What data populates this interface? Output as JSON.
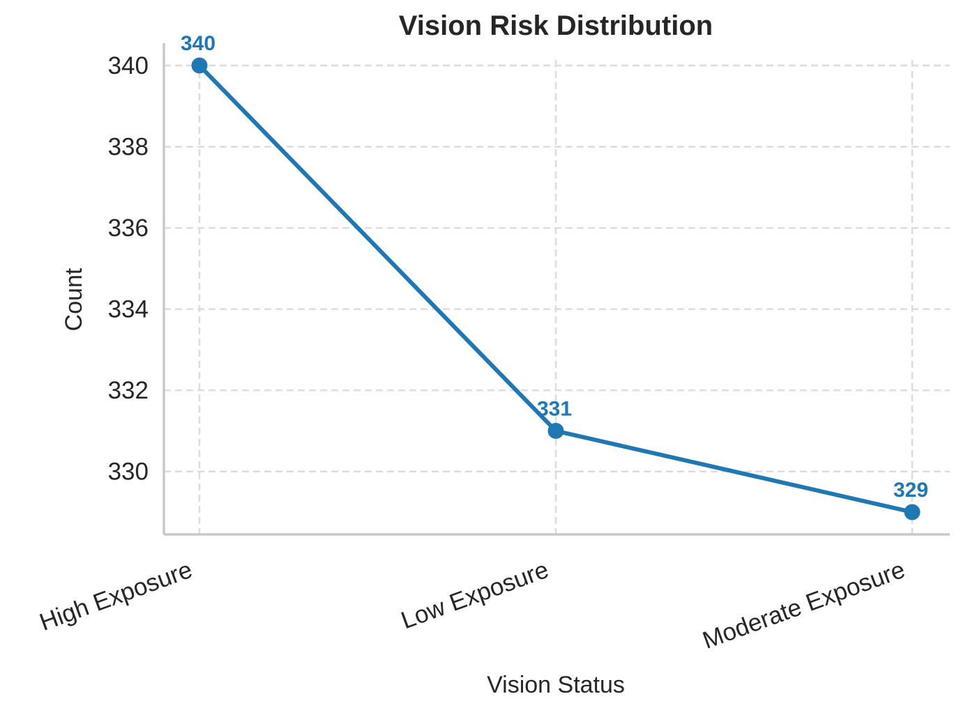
{
  "chart_data": {
    "type": "line",
    "title": "Vision Risk Distribution",
    "xlabel": "Vision Status",
    "ylabel": "Count",
    "categories": [
      "High Exposure",
      "Low Exposure",
      "Moderate Exposure"
    ],
    "series": [
      {
        "values": [
          340,
          331,
          329
        ],
        "color": "#1f77b4"
      }
    ],
    "data_labels": [
      "340",
      "331",
      "329"
    ],
    "yticks": [
      330,
      332,
      334,
      336,
      338,
      340
    ],
    "ylim": [
      328.45,
      340.55
    ],
    "grid": true,
    "legend": "none"
  }
}
